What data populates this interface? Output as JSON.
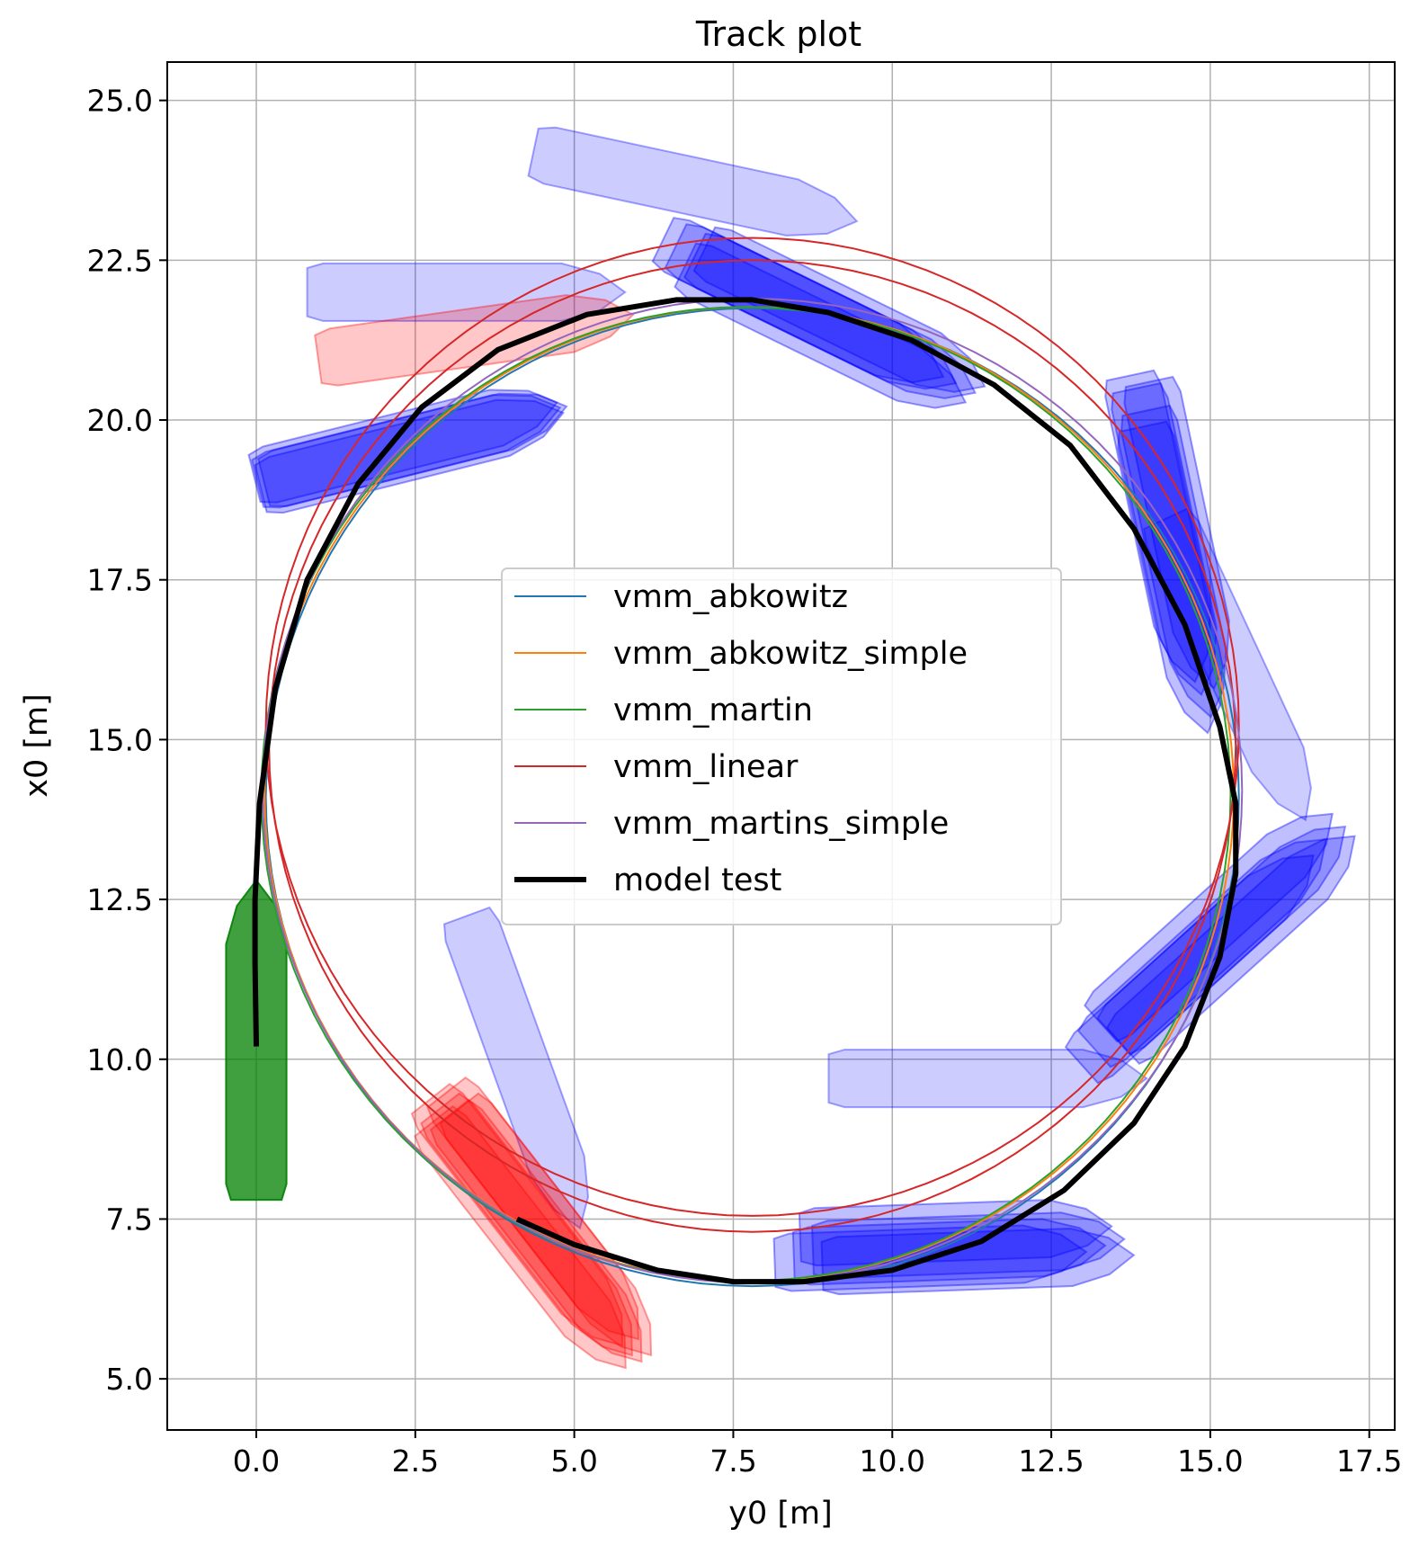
{
  "chart_data": {
    "type": "line",
    "title": "Track plot",
    "xlabel": "y0 [m]",
    "ylabel": "x0 [m]",
    "xlim": [
      -1.4,
      17.9
    ],
    "ylim": [
      4.2,
      25.6
    ],
    "xticks": [
      0.0,
      2.5,
      5.0,
      7.5,
      10.0,
      12.5,
      15.0,
      17.5
    ],
    "yticks": [
      5.0,
      7.5,
      10.0,
      12.5,
      15.0,
      17.5,
      20.0,
      22.5,
      25.0
    ],
    "xtick_labels": [
      "0.0",
      "2.5",
      "5.0",
      "7.5",
      "10.0",
      "12.5",
      "15.0",
      "17.5"
    ],
    "ytick_labels": [
      "5.0",
      "7.5",
      "10.0",
      "12.5",
      "15.0",
      "17.5",
      "20.0",
      "22.5",
      "25.0"
    ],
    "grid": true,
    "legend_position": "center",
    "series": [
      {
        "name": "vmm_abkowitz",
        "color": "#1f77b4",
        "width": 2,
        "circle": {
          "cy": 7.8,
          "cx": 14.1,
          "r": 7.65
        }
      },
      {
        "name": "vmm_abkowitz_simple",
        "color": "#ff7f0e",
        "width": 2,
        "circle": {
          "cy": 7.75,
          "cx": 14.15,
          "r": 7.62
        }
      },
      {
        "name": "vmm_martin",
        "color": "#2ca02c",
        "width": 2,
        "circle": {
          "cy": 7.7,
          "cx": 14.15,
          "r": 7.62
        }
      },
      {
        "name": "vmm_linear",
        "color": "#d62728",
        "width": 2,
        "circle": {
          "cy": 7.8,
          "cx": 15.2,
          "r": 7.65
        },
        "circle2": {
          "cy": 7.8,
          "cx": 14.9,
          "r": 7.6
        }
      },
      {
        "name": "vmm_martins_simple",
        "color": "#9467bd",
        "width": 2,
        "circle": {
          "cy": 7.8,
          "cx": 14.2,
          "r": 7.7
        }
      },
      {
        "name": "model test",
        "color": "#000000",
        "width": 6,
        "points": [
          [
            0.0,
            10.2
          ],
          [
            -0.02,
            11.5
          ],
          [
            -0.02,
            12.5
          ],
          [
            0.05,
            14.0
          ],
          [
            0.3,
            15.8
          ],
          [
            0.8,
            17.5
          ],
          [
            1.6,
            19.0
          ],
          [
            2.6,
            20.2
          ],
          [
            3.8,
            21.1
          ],
          [
            5.2,
            21.65
          ],
          [
            6.6,
            21.88
          ],
          [
            7.8,
            21.88
          ],
          [
            9.0,
            21.68
          ],
          [
            10.3,
            21.25
          ],
          [
            11.6,
            20.55
          ],
          [
            12.8,
            19.6
          ],
          [
            13.8,
            18.3
          ],
          [
            14.6,
            16.8
          ],
          [
            15.15,
            15.2
          ],
          [
            15.4,
            14.0
          ],
          [
            15.4,
            12.9
          ],
          [
            15.15,
            11.6
          ],
          [
            14.6,
            10.2
          ],
          [
            13.8,
            9.0
          ],
          [
            12.7,
            7.95
          ],
          [
            11.4,
            7.15
          ],
          [
            10.0,
            6.7
          ],
          [
            8.6,
            6.52
          ],
          [
            7.5,
            6.52
          ],
          [
            6.3,
            6.7
          ],
          [
            5.0,
            7.1
          ],
          [
            4.1,
            7.5
          ]
        ]
      }
    ],
    "ships": [
      {
        "color": "#0000ff",
        "alpha": 0.2,
        "cy": 3.3,
        "cx": 22.0,
        "heading": 0,
        "length": 5.0,
        "beam": 0.9
      },
      {
        "color": "#0000ff",
        "alpha": 0.2,
        "cy": 6.9,
        "cx": 23.65,
        "heading": -12,
        "length": 5.2,
        "beam": 0.9
      },
      {
        "color": "#0000ff",
        "alpha": 0.2,
        "cy": 15.4,
        "cx": 16.1,
        "heading": -65,
        "length": 5.2,
        "beam": 0.9
      },
      {
        "color": "#0000ff",
        "alpha": 0.2,
        "cy": 11.5,
        "cx": 9.7,
        "heading": 0,
        "length": 5.0,
        "beam": 0.9
      },
      {
        "color": "#0000ff",
        "alpha": 0.2,
        "cy": 4.2,
        "cx": 9.8,
        "heading": -70,
        "length": 5.2,
        "beam": 0.9
      },
      {
        "color": "#ff0000",
        "alpha": 0.22,
        "cy": 3.45,
        "cx": 21.3,
        "heading": 8,
        "length": 5.0,
        "beam": 0.9
      },
      {
        "color": "#0000ff",
        "alpha": 0.25,
        "cy": 2.4,
        "cx": 19.6,
        "heading": 14,
        "length": 4.9,
        "beam": 0.9,
        "copies": [
          [
            0,
            0
          ],
          [
            0.05,
            -0.08
          ],
          [
            -0.05,
            0.08
          ],
          [
            0.1,
            0.02
          ]
        ]
      },
      {
        "color": "#0000ff",
        "alpha": 0.25,
        "cy": 8.8,
        "cx": 21.65,
        "heading": -26,
        "length": 4.9,
        "beam": 0.9,
        "copies": [
          [
            0,
            0
          ],
          [
            0.3,
            -0.15
          ],
          [
            -0.2,
            0.1
          ],
          [
            0.15,
            -0.3
          ],
          [
            0.45,
            -0.05
          ]
        ]
      },
      {
        "color": "#0000ff",
        "alpha": 0.25,
        "cy": 14.35,
        "cx": 18.1,
        "heading": -78,
        "length": 4.9,
        "beam": 0.9,
        "copies": [
          [
            0,
            0
          ],
          [
            0.15,
            -0.35
          ],
          [
            -0.1,
            0.2
          ],
          [
            0.2,
            0.1
          ],
          [
            0.1,
            -0.6
          ]
        ]
      },
      {
        "color": "#0000ff",
        "alpha": 0.25,
        "cy": 15.0,
        "cx": 11.8,
        "heading": 42,
        "length": 4.9,
        "beam": 0.9,
        "copies": [
          [
            0,
            0
          ],
          [
            0.3,
            0.2
          ],
          [
            -0.2,
            -0.25
          ],
          [
            0.45,
            0.05
          ],
          [
            0.1,
            0.4
          ]
        ]
      },
      {
        "color": "#0000ff",
        "alpha": 0.25,
        "cy": 10.9,
        "cx": 7.0,
        "heading": 2,
        "length": 4.9,
        "beam": 0.9,
        "copies": [
          [
            0,
            0
          ],
          [
            0.3,
            0.1
          ],
          [
            -0.3,
            -0.1
          ],
          [
            0.1,
            0.3
          ],
          [
            0.45,
            -0.15
          ]
        ]
      },
      {
        "color": "#ff0000",
        "alpha": 0.22,
        "cy": 4.4,
        "cx": 7.3,
        "heading": -52,
        "length": 4.9,
        "beam": 0.9,
        "copies": [
          [
            0,
            0
          ],
          [
            0.15,
            -0.1
          ],
          [
            -0.15,
            0.15
          ],
          [
            0.3,
            0.0
          ],
          [
            0.1,
            0.25
          ],
          [
            -0.1,
            -0.2
          ]
        ]
      },
      {
        "color": "#008000",
        "alpha": 0.75,
        "cy": 0.0,
        "cx": 10.3,
        "heading": 90,
        "length": 5.0,
        "beam": 0.95
      }
    ]
  }
}
